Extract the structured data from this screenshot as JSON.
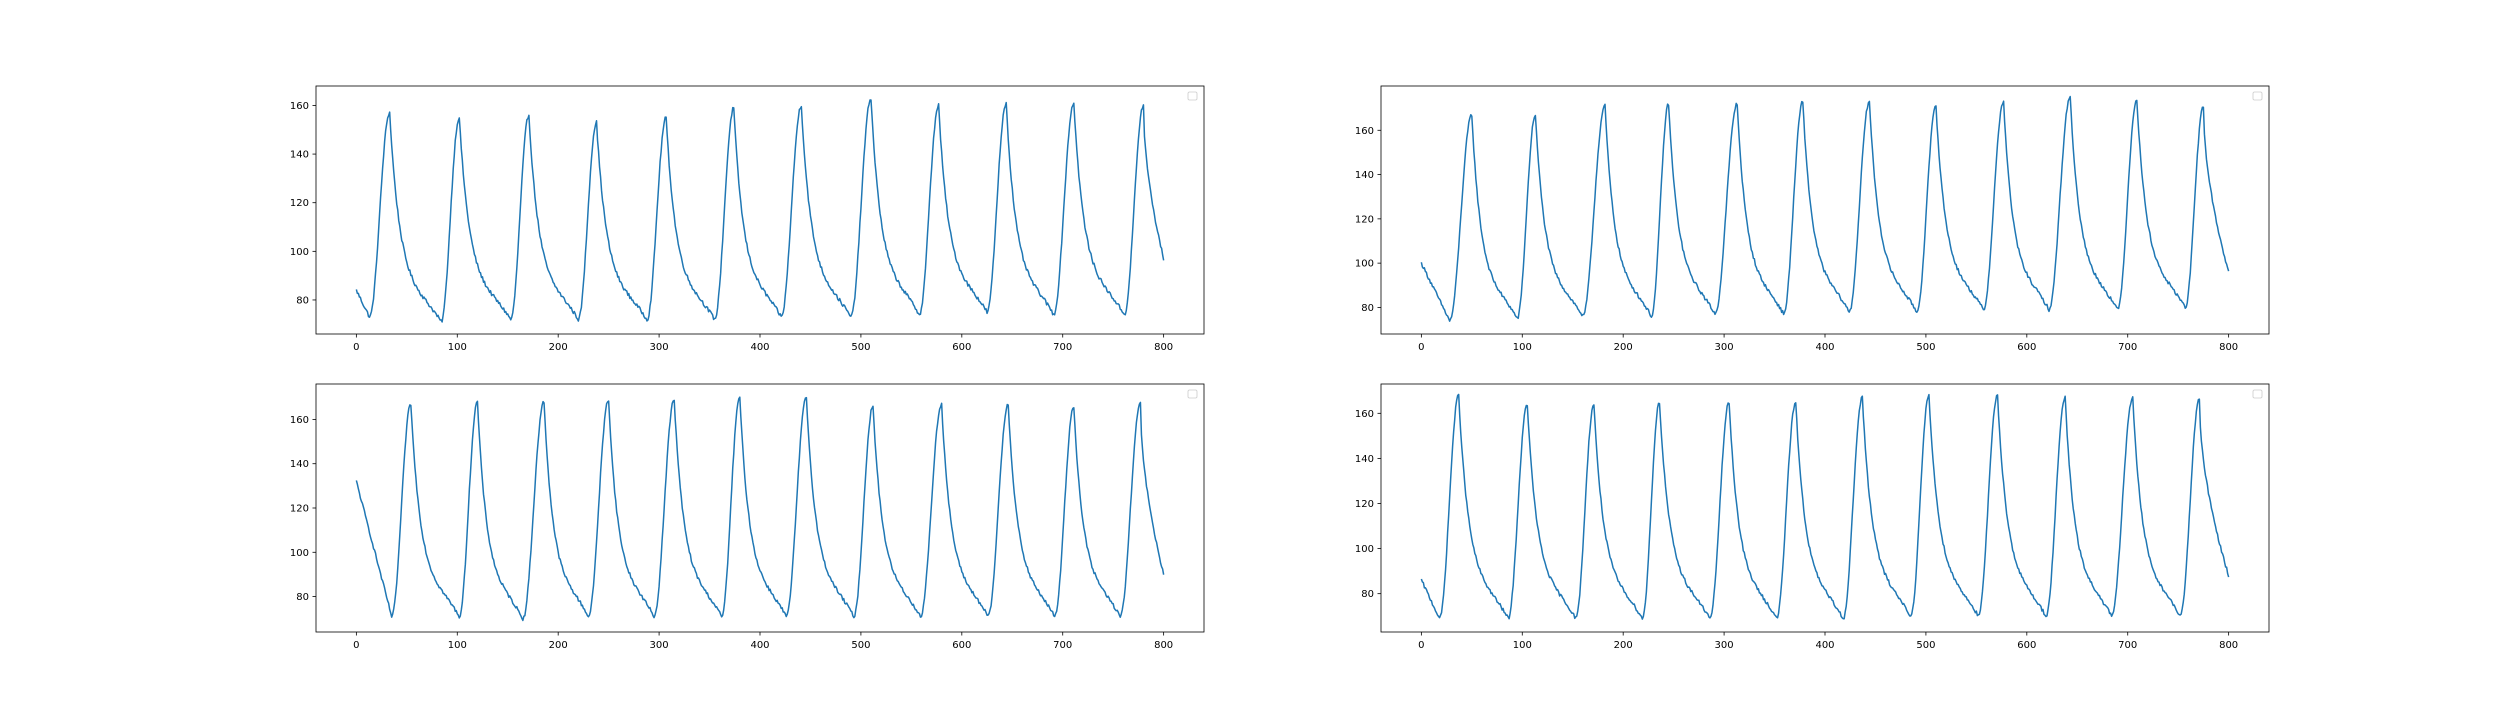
{
  "figure": {
    "background": "#ffffff",
    "line_color": "#1f77b4",
    "axis_color": "#000000",
    "legend_box_color": "#cccccc"
  },
  "chart_data": [
    {
      "type": "line",
      "title": "",
      "xlabel": "",
      "ylabel": "",
      "xlim": [
        -40,
        840
      ],
      "ylim": [
        66,
        168
      ],
      "xticks": [
        0,
        100,
        200,
        300,
        400,
        500,
        600,
        700,
        800
      ],
      "yticks": [
        80,
        100,
        120,
        140,
        160
      ],
      "grid": false,
      "legend": "top-right-empty",
      "series": [
        {
          "start": 84,
          "end": 97,
          "cycles": [
            {
              "min_x": 13,
              "min_y": 73,
              "peak_x": 33,
              "peak_y": 157
            },
            {
              "min_x": 84,
              "min_y": 71,
              "peak_x": 102,
              "peak_y": 155
            },
            {
              "min_x": 153,
              "min_y": 72,
              "peak_x": 171,
              "peak_y": 156
            },
            {
              "min_x": 220,
              "min_y": 72,
              "peak_x": 238,
              "peak_y": 153
            },
            {
              "min_x": 288,
              "min_y": 72,
              "peak_x": 307,
              "peak_y": 155
            },
            {
              "min_x": 355,
              "min_y": 72,
              "peak_x": 374,
              "peak_y": 159
            },
            {
              "min_x": 421,
              "min_y": 73,
              "peak_x": 441,
              "peak_y": 160
            },
            {
              "min_x": 490,
              "min_y": 73,
              "peak_x": 510,
              "peak_y": 163
            },
            {
              "min_x": 558,
              "min_y": 74,
              "peak_x": 577,
              "peak_y": 160
            },
            {
              "min_x": 625,
              "min_y": 75,
              "peak_x": 644,
              "peak_y": 161
            },
            {
              "min_x": 691,
              "min_y": 74,
              "peak_x": 711,
              "peak_y": 161
            },
            {
              "min_x": 761,
              "min_y": 74,
              "peak_x": 780,
              "peak_y": 160
            }
          ]
        }
      ]
    },
    {
      "type": "line",
      "title": "",
      "xlabel": "",
      "ylabel": "",
      "xlim": [
        -40,
        840
      ],
      "ylim": [
        68,
        180
      ],
      "xticks": [
        0,
        100,
        200,
        300,
        400,
        500,
        600,
        700,
        800
      ],
      "yticks": [
        80,
        100,
        120,
        140,
        160
      ],
      "grid": false,
      "legend": "top-right-empty",
      "series": [
        {
          "start": 100,
          "end": 96,
          "cycles": [
            {
              "min_x": 28,
              "min_y": 74,
              "peak_x": 50,
              "peak_y": 167
            },
            {
              "min_x": 95,
              "min_y": 75,
              "peak_x": 113,
              "peak_y": 167
            },
            {
              "min_x": 160,
              "min_y": 76,
              "peak_x": 182,
              "peak_y": 171
            },
            {
              "min_x": 228,
              "min_y": 76,
              "peak_x": 245,
              "peak_y": 172
            },
            {
              "min_x": 291,
              "min_y": 77,
              "peak_x": 313,
              "peak_y": 172
            },
            {
              "min_x": 359,
              "min_y": 77,
              "peak_x": 378,
              "peak_y": 173
            },
            {
              "min_x": 424,
              "min_y": 78,
              "peak_x": 444,
              "peak_y": 173
            },
            {
              "min_x": 491,
              "min_y": 78,
              "peak_x": 510,
              "peak_y": 171
            },
            {
              "min_x": 557,
              "min_y": 79,
              "peak_x": 577,
              "peak_y": 173
            },
            {
              "min_x": 622,
              "min_y": 79,
              "peak_x": 643,
              "peak_y": 175
            },
            {
              "min_x": 690,
              "min_y": 79,
              "peak_x": 709,
              "peak_y": 174
            },
            {
              "min_x": 757,
              "min_y": 80,
              "peak_x": 775,
              "peak_y": 171
            }
          ]
        }
      ]
    },
    {
      "type": "line",
      "title": "",
      "xlabel": "",
      "ylabel": "",
      "xlim": [
        -40,
        840
      ],
      "ylim": [
        64,
        176
      ],
      "xticks": [
        0,
        100,
        200,
        300,
        400,
        500,
        600,
        700,
        800
      ],
      "yticks": [
        80,
        100,
        120,
        140,
        160
      ],
      "grid": false,
      "legend": "top-right-empty",
      "series": [
        {
          "start": 132,
          "end": 90,
          "cycles": [
            {
              "min_x": 35,
              "min_y": 71,
              "peak_x": 54,
              "peak_y": 167
            },
            {
              "min_x": 102,
              "min_y": 71,
              "peak_x": 120,
              "peak_y": 168
            },
            {
              "min_x": 165,
              "min_y": 70,
              "peak_x": 186,
              "peak_y": 168
            },
            {
              "min_x": 230,
              "min_y": 71,
              "peak_x": 250,
              "peak_y": 169
            },
            {
              "min_x": 295,
              "min_y": 71,
              "peak_x": 315,
              "peak_y": 169
            },
            {
              "min_x": 362,
              "min_y": 71,
              "peak_x": 380,
              "peak_y": 170
            },
            {
              "min_x": 426,
              "min_y": 71,
              "peak_x": 446,
              "peak_y": 170
            },
            {
              "min_x": 493,
              "min_y": 71,
              "peak_x": 512,
              "peak_y": 166
            },
            {
              "min_x": 559,
              "min_y": 71,
              "peak_x": 580,
              "peak_y": 167
            },
            {
              "min_x": 626,
              "min_y": 71,
              "peak_x": 646,
              "peak_y": 167
            },
            {
              "min_x": 692,
              "min_y": 71,
              "peak_x": 711,
              "peak_y": 166
            },
            {
              "min_x": 757,
              "min_y": 71,
              "peak_x": 777,
              "peak_y": 167
            }
          ]
        }
      ]
    },
    {
      "type": "line",
      "title": "",
      "xlabel": "",
      "ylabel": "",
      "xlim": [
        -40,
        840
      ],
      "ylim": [
        63,
        173
      ],
      "xticks": [
        0,
        100,
        200,
        300,
        400,
        500,
        600,
        700,
        800
      ],
      "yticks": [
        80,
        100,
        120,
        140,
        160
      ],
      "grid": false,
      "legend": "top-right-empty",
      "series": [
        {
          "start": 86,
          "end": 88,
          "cycles": [
            {
              "min_x": 18,
              "min_y": 69,
              "peak_x": 37,
              "peak_y": 168
            },
            {
              "min_x": 86,
              "min_y": 69,
              "peak_x": 105,
              "peak_y": 164
            },
            {
              "min_x": 153,
              "min_y": 69,
              "peak_x": 171,
              "peak_y": 164
            },
            {
              "min_x": 219,
              "min_y": 69,
              "peak_x": 236,
              "peak_y": 165
            },
            {
              "min_x": 286,
              "min_y": 69,
              "peak_x": 305,
              "peak_y": 165
            },
            {
              "min_x": 352,
              "min_y": 69,
              "peak_x": 371,
              "peak_y": 165
            },
            {
              "min_x": 418,
              "min_y": 69,
              "peak_x": 437,
              "peak_y": 167
            },
            {
              "min_x": 485,
              "min_y": 70,
              "peak_x": 503,
              "peak_y": 168
            },
            {
              "min_x": 552,
              "min_y": 70,
              "peak_x": 571,
              "peak_y": 168
            },
            {
              "min_x": 619,
              "min_y": 70,
              "peak_x": 638,
              "peak_y": 167
            },
            {
              "min_x": 684,
              "min_y": 70,
              "peak_x": 705,
              "peak_y": 167
            },
            {
              "min_x": 752,
              "min_y": 70,
              "peak_x": 771,
              "peak_y": 166
            }
          ]
        }
      ]
    }
  ]
}
